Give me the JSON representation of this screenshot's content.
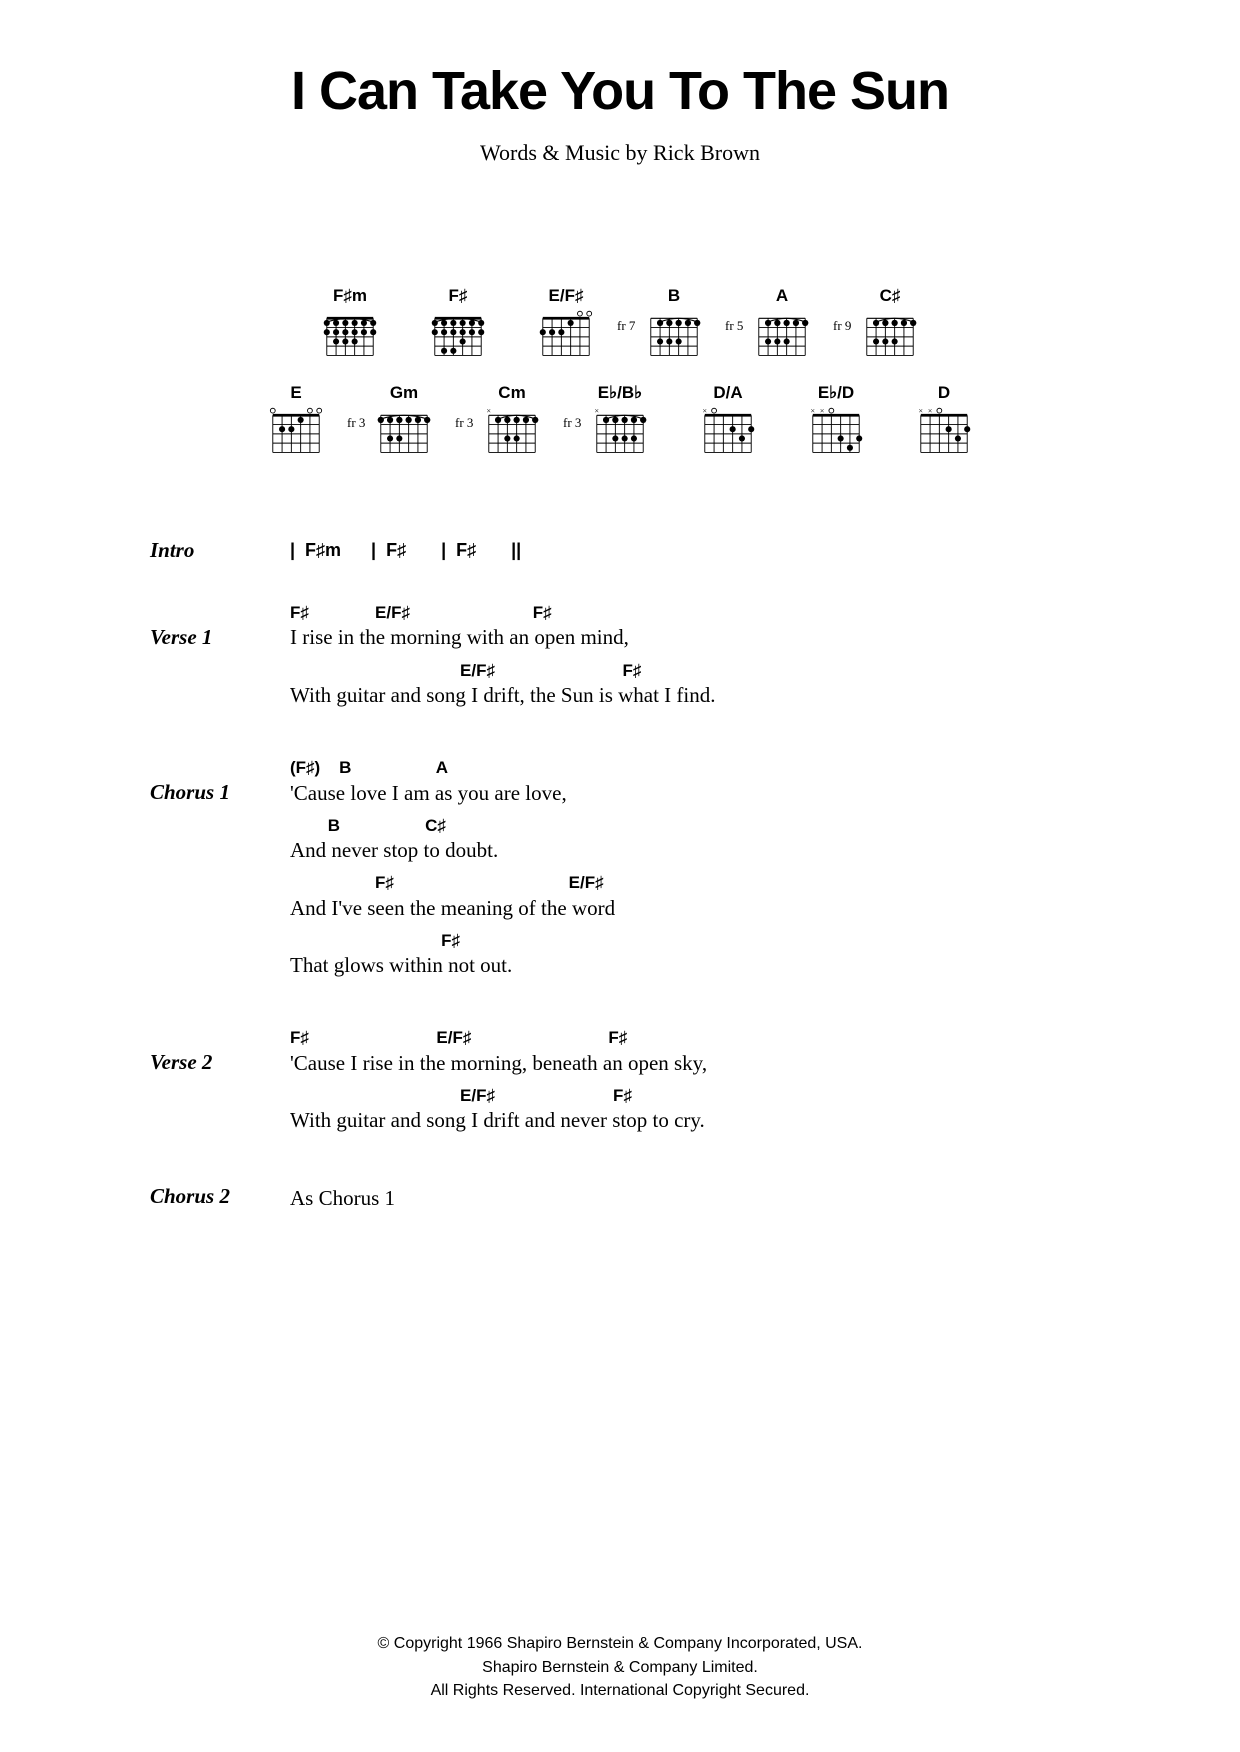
{
  "title": "I Can Take You To The Sun",
  "byline": "Words & Music by Rick Brown",
  "chord_diagrams": {
    "row1": [
      {
        "name": "F♯m",
        "fret": "",
        "markers_top": "",
        "barre_fret": 0,
        "dots": [
          [
            0,
            1
          ],
          [
            1,
            1
          ],
          [
            2,
            1
          ],
          [
            3,
            1
          ],
          [
            4,
            1
          ],
          [
            5,
            1
          ],
          [
            1,
            2
          ],
          [
            2,
            2
          ],
          [
            3,
            2
          ]
        ],
        "barre": [
          0,
          5,
          0
        ]
      },
      {
        "name": "F♯",
        "fret": "",
        "markers_top": "",
        "dots": [
          [
            0,
            1
          ],
          [
            1,
            1
          ],
          [
            2,
            1
          ],
          [
            3,
            1
          ],
          [
            4,
            1
          ],
          [
            5,
            1
          ],
          [
            3,
            2
          ],
          [
            1,
            3
          ],
          [
            2,
            3
          ]
        ],
        "barre": [
          0,
          5,
          0
        ]
      },
      {
        "name": "E/F♯",
        "fret": "",
        "markers_top": " oo",
        "dots": [
          [
            0,
            1
          ],
          [
            3,
            0
          ],
          [
            1,
            1
          ],
          [
            2,
            1
          ]
        ],
        "barre": null,
        "open": [
          4,
          5
        ],
        "mute": []
      },
      {
        "name": "B",
        "fret": "fr 7",
        "dots": [
          [
            1,
            0
          ],
          [
            2,
            0
          ],
          [
            3,
            0
          ],
          [
            4,
            0
          ],
          [
            5,
            0
          ],
          [
            1,
            2
          ],
          [
            2,
            2
          ],
          [
            3,
            2
          ]
        ],
        "barre": [
          1,
          5,
          0
        ]
      },
      {
        "name": "A",
        "fret": "fr 5",
        "dots": [
          [
            1,
            0
          ],
          [
            2,
            0
          ],
          [
            3,
            0
          ],
          [
            4,
            0
          ],
          [
            5,
            0
          ],
          [
            1,
            2
          ],
          [
            2,
            2
          ],
          [
            3,
            2
          ]
        ],
        "barre": [
          1,
          5,
          0
        ]
      },
      {
        "name": "C♯",
        "fret": "fr 9",
        "dots": [
          [
            1,
            0
          ],
          [
            2,
            0
          ],
          [
            3,
            0
          ],
          [
            4,
            0
          ],
          [
            5,
            0
          ],
          [
            1,
            2
          ],
          [
            2,
            2
          ],
          [
            3,
            2
          ]
        ],
        "barre": [
          1,
          5,
          0
        ]
      }
    ],
    "row2": [
      {
        "name": "E",
        "fret": "",
        "markers_top": "o  oo",
        "dots": [
          [
            3,
            0
          ],
          [
            1,
            1
          ],
          [
            2,
            1
          ]
        ],
        "open": [
          0,
          4,
          5
        ],
        "mute": []
      },
      {
        "name": "Gm",
        "fret": "fr 3",
        "dots": [
          [
            0,
            0
          ],
          [
            1,
            0
          ],
          [
            2,
            0
          ],
          [
            3,
            0
          ],
          [
            4,
            0
          ],
          [
            5,
            0
          ],
          [
            1,
            2
          ],
          [
            2,
            2
          ]
        ],
        "barre": [
          0,
          5,
          0
        ]
      },
      {
        "name": "Cm",
        "fret": "fr 3",
        "markers_top": "x",
        "dots": [
          [
            1,
            0
          ],
          [
            2,
            0
          ],
          [
            3,
            0
          ],
          [
            4,
            0
          ],
          [
            5,
            0
          ],
          [
            2,
            2
          ],
          [
            3,
            2
          ]
        ],
        "barre": [
          1,
          5,
          0
        ],
        "mute": [
          0
        ]
      },
      {
        "name": "E♭/B♭",
        "fret": "fr 3",
        "markers_top": " x",
        "dots": [
          [
            1,
            0
          ],
          [
            2,
            0
          ],
          [
            3,
            0
          ],
          [
            4,
            0
          ],
          [
            5,
            0
          ],
          [
            2,
            2
          ],
          [
            3,
            2
          ],
          [
            4,
            2
          ]
        ],
        "barre": [
          1,
          5,
          0
        ],
        "mute": [
          0
        ]
      },
      {
        "name": "D/A",
        "fret": "",
        "markers_top": "xo",
        "dots": [
          [
            3,
            1
          ],
          [
            5,
            1
          ],
          [
            4,
            2
          ]
        ],
        "open": [
          1
        ],
        "mute": [
          0
        ]
      },
      {
        "name": "E♭/D",
        "fret": "",
        "markers_top": "xxo",
        "dots": [
          [
            3,
            2
          ],
          [
            5,
            2
          ],
          [
            4,
            3
          ]
        ],
        "open": [
          2
        ],
        "mute": [
          0,
          1
        ]
      },
      {
        "name": "D",
        "fret": "",
        "markers_top": "xxo",
        "dots": [
          [
            3,
            1
          ],
          [
            5,
            1
          ],
          [
            4,
            2
          ]
        ],
        "open": [
          2
        ],
        "mute": [
          0,
          1
        ]
      }
    ]
  },
  "sections": [
    {
      "label": "Intro",
      "type": "intro",
      "content": "|  F♯m      |  F♯       |  F♯       ||"
    },
    {
      "label": "Verse 1",
      "type": "lyrics",
      "lines": [
        {
          "chords": "F♯              E/F♯                          F♯",
          "lyric": "I rise in the morning with an open mind,"
        },
        {
          "chords": "                                    E/F♯                           F♯",
          "lyric": "With guitar and song I drift, the Sun is what I find."
        }
      ]
    },
    {
      "label": "Chorus 1",
      "type": "lyrics",
      "lines": [
        {
          "chords": "(F♯)    B                  A",
          "lyric": "'Cause love I am as you are love,"
        },
        {
          "chords": "        B                  C♯",
          "lyric": "And never stop to doubt."
        },
        {
          "chords": "                  F♯                                     E/F♯",
          "lyric": "And I've seen the meaning of the word"
        },
        {
          "chords": "                                F♯",
          "lyric": "That glows within not out."
        }
      ]
    },
    {
      "label": "Verse 2",
      "type": "lyrics",
      "lines": [
        {
          "chords": "F♯                           E/F♯                             F♯",
          "lyric": "'Cause I rise in the morning, beneath an open sky,"
        },
        {
          "chords": "                                    E/F♯                         F♯",
          "lyric": "With guitar and song I drift and never stop to cry."
        }
      ]
    },
    {
      "label": "Chorus 2",
      "type": "plain",
      "content": "As Chorus 1"
    }
  ],
  "copyright": [
    "© Copyright 1966 Shapiro Bernstein & Company Incorporated, USA.",
    "Shapiro Bernstein & Company Limited.",
    "All Rights Reserved. International Copyright Secured."
  ]
}
